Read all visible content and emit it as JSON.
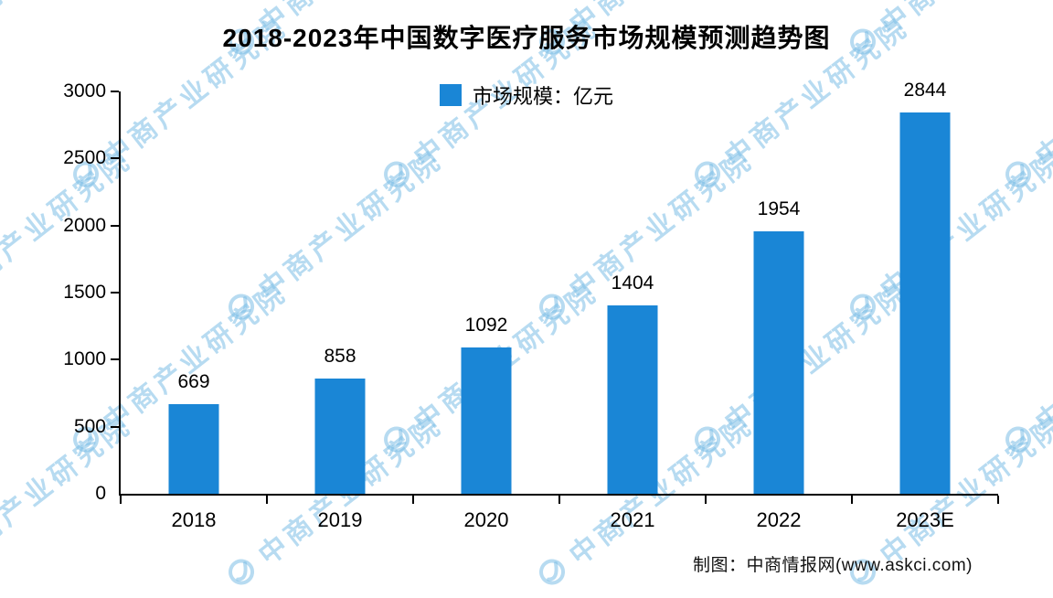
{
  "title": "2018-2023年中国数字医疗服务市场规模预测趋势图",
  "legend": {
    "label": "市场规模：亿元"
  },
  "footer": "制图：中商情报网(www.askci.com)",
  "watermark": {
    "text": "中商产业研究院"
  },
  "colors": {
    "bar": "#1a86d6",
    "watermark": "rgba(124,189,229,0.55)"
  },
  "chart_data": {
    "type": "bar",
    "categories": [
      "2018",
      "2019",
      "2020",
      "2021",
      "2022",
      "2023E"
    ],
    "values": [
      669,
      858,
      1092,
      1404,
      1954,
      2844
    ],
    "series": [
      {
        "name": "市场规模：亿元",
        "values": [
          669,
          858,
          1092,
          1404,
          1954,
          2844
        ]
      }
    ],
    "title": "2018-2023年中国数字医疗服务市场规模预测趋势图",
    "xlabel": "",
    "ylabel": "",
    "ylim": [
      0,
      3000
    ],
    "yticks": [
      0,
      500,
      1000,
      1500,
      2000,
      2500,
      3000
    ],
    "grid": false,
    "legend_position": "top",
    "bar_color": "#1a86d6"
  }
}
